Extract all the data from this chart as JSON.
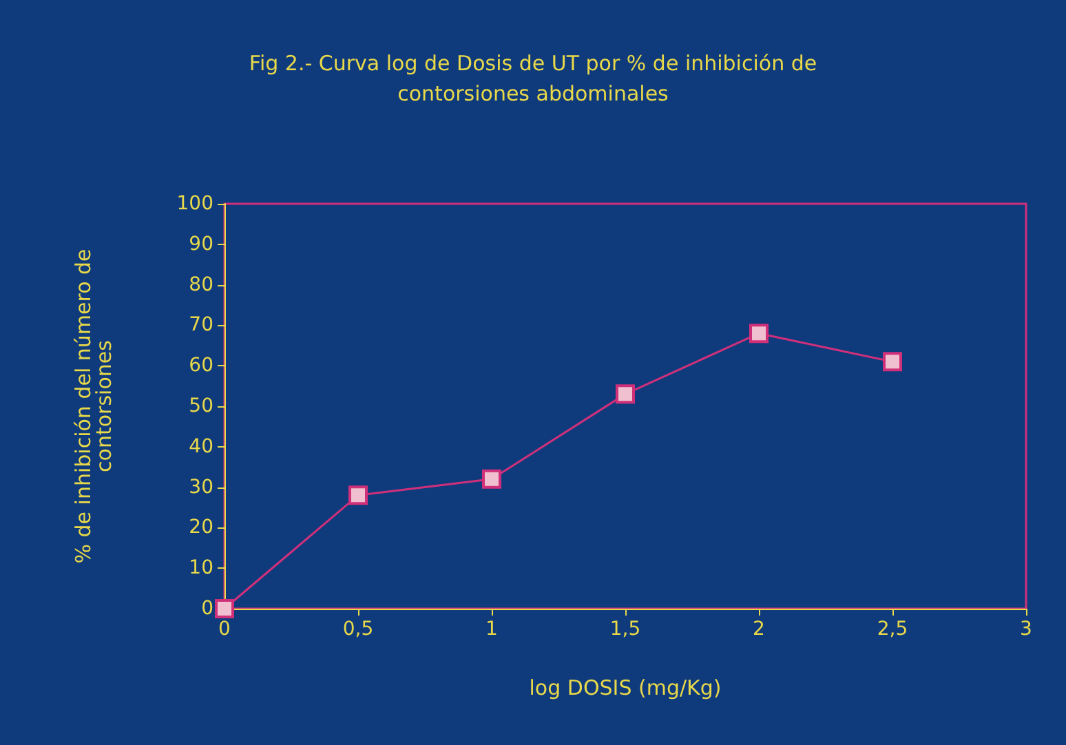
{
  "chart_data": {
    "type": "line",
    "title": "Fig 2.- Curva log de Dosis de UT por % de inhibición de\ncontorsiones abdominales",
    "xlabel": "log DOSIS (mg/Kg)",
    "ylabel": "% de inhibición del número de\ncontorsiones",
    "x": [
      0,
      0.5,
      1,
      1.5,
      2,
      2.5
    ],
    "series": [
      {
        "color": "#d0307a",
        "values": [
          0,
          28,
          32,
          53,
          68,
          61
        ]
      }
    ],
    "xlim": [
      0,
      3
    ],
    "xticks": [
      0,
      {
        "value": 0.5,
        "label": "0,5"
      },
      1,
      {
        "value": 1.5,
        "label": "1,5"
      },
      2,
      {
        "value": 2.5,
        "label": "2,5"
      },
      3
    ],
    "ylim": [
      0,
      100
    ],
    "yticks": [
      0,
      10,
      20,
      30,
      40,
      50,
      60,
      70,
      80,
      90,
      100
    ],
    "grid": false,
    "marker": "square",
    "line_style": "solid"
  }
}
